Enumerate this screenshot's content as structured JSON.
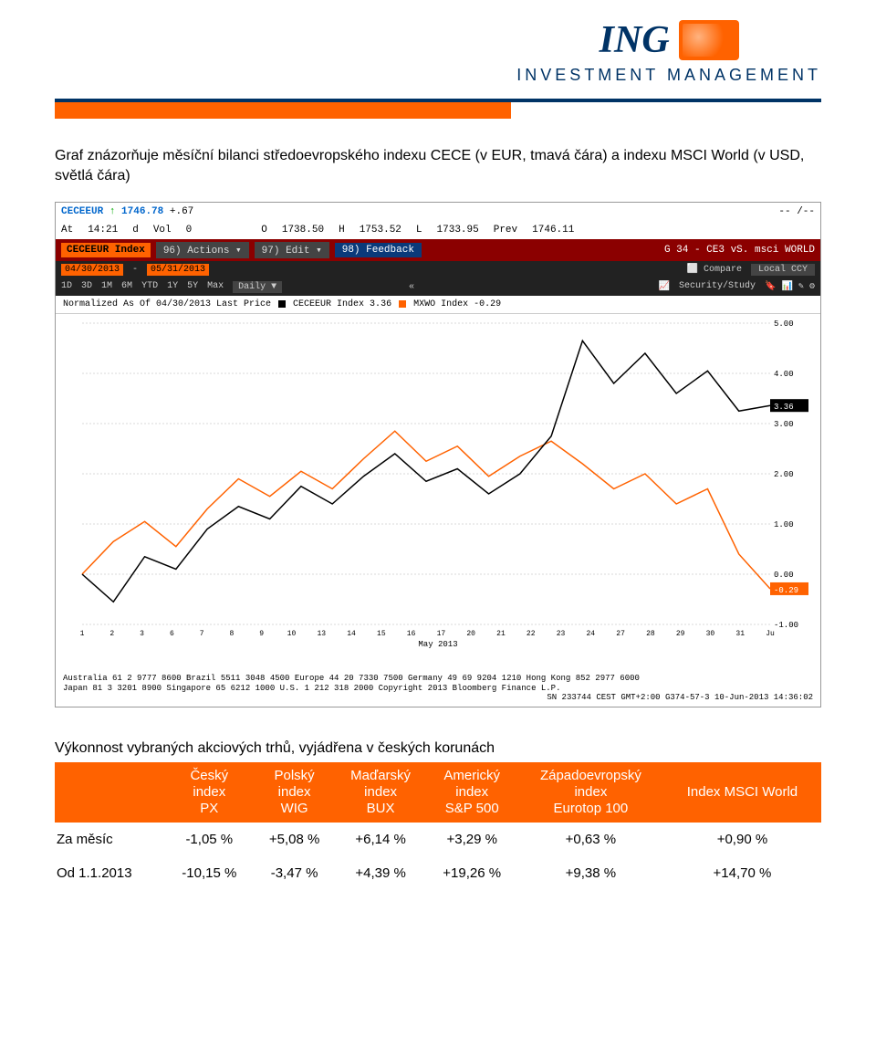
{
  "logo": {
    "brand": "ING",
    "subtitle": "INVESTMENT MANAGEMENT"
  },
  "description": "Graf znázorňuje měsíční bilanci středoevropského indexu CECE (v EUR, tmavá čára) a indexu MSCI World (v USD, světlá čára)",
  "terminal": {
    "symbol": "CECEEUR",
    "arrow": "↑",
    "last": "1746.78",
    "change": "+.67",
    "na": "-- /--",
    "at": "At",
    "time": "14:21",
    "d": "d",
    "vol": "Vol",
    "volv": "0",
    "o": "O",
    "ov": "1738.50",
    "h": "H",
    "hv": "1753.52",
    "l": "L",
    "lv": "1733.95",
    "prev": "Prev",
    "prevv": "1746.11",
    "index_label": "CECEEUR Index",
    "actions": "96) Actions ▾",
    "edit": "97) Edit ▾",
    "feedback": "98) Feedback",
    "g34": "G 34 - CE3 vS. msci WORLD",
    "date_from": "04/30/2013",
    "date_to": "05/31/2013",
    "compare": "Compare",
    "local": "Local CCY",
    "ranges": [
      "1D",
      "3D",
      "1M",
      "6M",
      "YTD",
      "1Y",
      "5Y",
      "Max",
      "Daily ▼"
    ],
    "security": "Security/Study",
    "legend_label": "Normalized As Of 04/30/2013  Last Price",
    "legend1": "CECEEUR Index 3.36",
    "legend2": "MXWO Index -0.29",
    "xaxis_label": "May 2013",
    "footer1": "Australia 61 2 9777 8600 Brazil 5511 3048 4500 Europe 44 20 7330 7500 Germany 49 69 9204 1210 Hong Kong 852 2977 6000",
    "footer2": "Japan 81 3 3201 8900      Singapore 65 6212 1000      U.S. 1 212 318 2000      Copyright 2013 Bloomberg Finance L.P.",
    "footer3": "SN 233744 CEST GMT+2:00 G374-57-3 10-Jun-2013 14:36:02"
  },
  "chart": {
    "ylim": [
      -1,
      5
    ],
    "yticks": [
      "5.00",
      "4.00",
      "3.00",
      "2.00",
      "1.00",
      "0.00",
      "-1.00"
    ],
    "badge1": "3.36",
    "badge1_color": "#000000",
    "badge2": "-0.29",
    "badge2_color": "#ff6200",
    "grid_color": "#d8d8d8",
    "bg": "#ffffff",
    "xticks": [
      "1",
      "2",
      "3",
      "6",
      "7",
      "8",
      "9",
      "10",
      "13",
      "14",
      "15",
      "16",
      "17",
      "20",
      "21",
      "22",
      "23",
      "24",
      "27",
      "28",
      "29",
      "30",
      "31",
      "Ju"
    ],
    "series": {
      "cece": {
        "color": "#000000",
        "width": 1.5,
        "points": [
          [
            0,
            0.0
          ],
          [
            1,
            -0.55
          ],
          [
            2,
            0.35
          ],
          [
            3,
            0.1
          ],
          [
            4,
            0.9
          ],
          [
            5,
            1.35
          ],
          [
            6,
            1.1
          ],
          [
            7,
            1.75
          ],
          [
            8,
            1.4
          ],
          [
            9,
            1.95
          ],
          [
            10,
            2.4
          ],
          [
            11,
            1.85
          ],
          [
            12,
            2.1
          ],
          [
            13,
            1.6
          ],
          [
            14,
            2.0
          ],
          [
            15,
            2.75
          ],
          [
            16,
            4.65
          ],
          [
            17,
            3.8
          ],
          [
            18,
            4.4
          ],
          [
            19,
            3.6
          ],
          [
            20,
            4.05
          ],
          [
            21,
            3.25
          ],
          [
            22,
            3.36
          ]
        ]
      },
      "mxwo": {
        "color": "#ff6200",
        "width": 1.5,
        "points": [
          [
            0,
            0.0
          ],
          [
            1,
            0.65
          ],
          [
            2,
            1.05
          ],
          [
            3,
            0.55
          ],
          [
            4,
            1.3
          ],
          [
            5,
            1.9
          ],
          [
            6,
            1.55
          ],
          [
            7,
            2.05
          ],
          [
            8,
            1.7
          ],
          [
            9,
            2.3
          ],
          [
            10,
            2.85
          ],
          [
            11,
            2.25
          ],
          [
            12,
            2.55
          ],
          [
            13,
            1.95
          ],
          [
            14,
            2.35
          ],
          [
            15,
            2.65
          ],
          [
            16,
            2.2
          ],
          [
            17,
            1.7
          ],
          [
            18,
            2.0
          ],
          [
            19,
            1.4
          ],
          [
            20,
            1.7
          ],
          [
            21,
            0.4
          ],
          [
            22,
            -0.29
          ]
        ]
      }
    }
  },
  "perf": {
    "title": "Výkonnost vybraných akciových trhů, vyjádřena v českých korunách",
    "columns": [
      "",
      "Český index PX",
      "Polský index WIG",
      "Maďarský index BUX",
      "Americký index S&P 500",
      "Západoevropský index Eurotop 100",
      "Index MSCI World"
    ],
    "rows": [
      {
        "label": "Za měsíc",
        "cells": [
          "-1,05 %",
          "+5,08 %",
          "+6,14 %",
          "+3,29 %",
          "+0,63 %",
          "+0,90 %"
        ]
      },
      {
        "label": "Od 1.1.2013",
        "cells": [
          "-10,15 %",
          "-3,47 %",
          "+4,39 %",
          "+19,26 %",
          "+9,38 %",
          "+14,70 %"
        ]
      }
    ],
    "header_bg": "#ff6200",
    "header_color": "#ffffff"
  }
}
